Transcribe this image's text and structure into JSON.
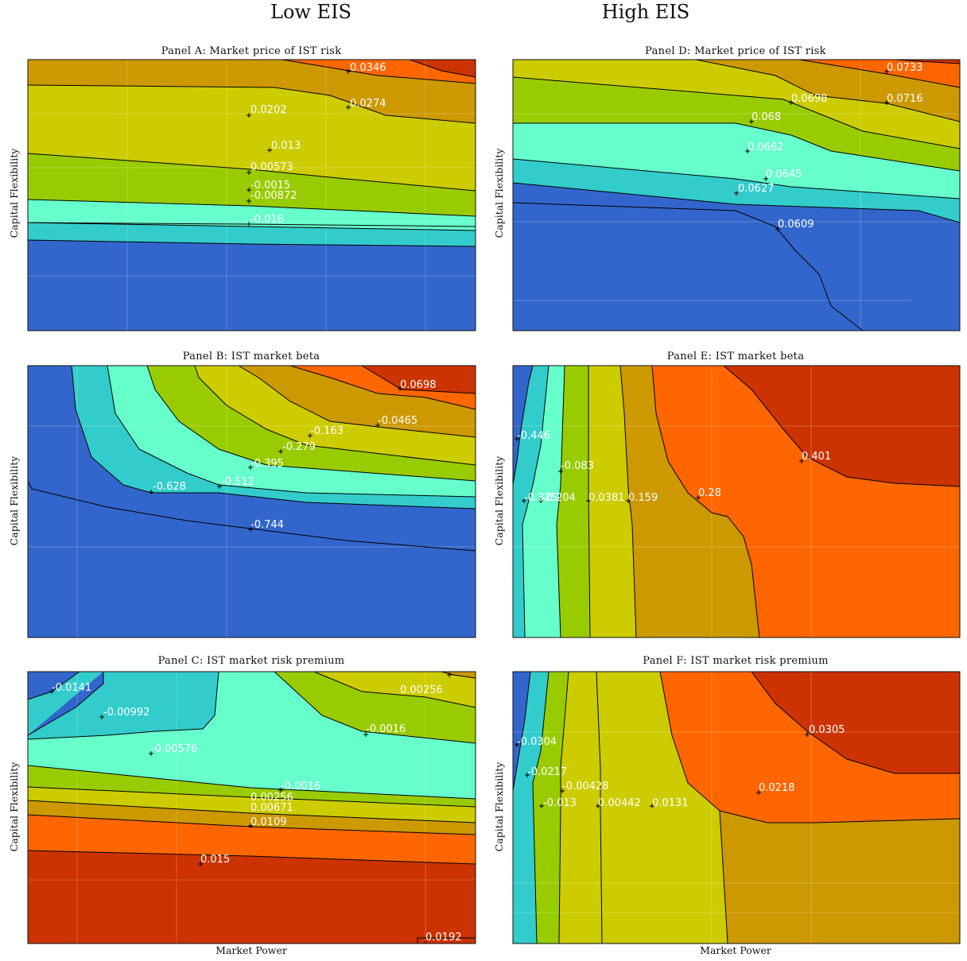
{
  "column_titles": [
    "Low EIS",
    "High EIS"
  ],
  "colors": {
    "c0": "#3366cc",
    "c1": "#33cccc",
    "c2": "#66ffcc",
    "c3": "#99cc00",
    "c4": "#cccc00",
    "c5": "#cc9900",
    "c6": "#ff6600",
    "c7": "#cc3300"
  },
  "chart_data": [
    {
      "type": "contour",
      "panel": "A",
      "title": "Panel A: Market price of IST risk",
      "xlabel": "",
      "ylabel": "Capital Flexibility",
      "contour_levels": [
        "0.0346",
        "0.0274",
        "0.0202",
        "0.013",
        "0.00573",
        "-0.0015",
        "-0.00872",
        "-0.016"
      ]
    },
    {
      "type": "contour",
      "panel": "B",
      "title": "Panel B: IST market beta",
      "xlabel": "",
      "ylabel": "Capital Flexibility",
      "contour_levels": [
        "0.0698",
        "-0.0465",
        "-0.163",
        "-0.279",
        "-0.395",
        "-0.512",
        "-0.628",
        "-0.744"
      ]
    },
    {
      "type": "contour",
      "panel": "C",
      "title": "Panel C: IST market risk premium",
      "xlabel": "Market Power",
      "ylabel": "Capital Flexibility",
      "contour_levels": [
        "-0.0141",
        "0.00256",
        "-0.00992",
        "-0.0016",
        "-0.00576",
        "-0.0016",
        "0.00256",
        "0.00671",
        "0.0109",
        "0.015",
        "0.0192"
      ]
    },
    {
      "type": "contour",
      "panel": "D",
      "title": "Panel D: Market price of IST risk",
      "xlabel": "",
      "ylabel": "Capital Flexibility",
      "contour_levels": [
        "0.0733",
        "0.0698",
        "0.0716",
        "0.068",
        "0.0662",
        "0.0645",
        "0.0627",
        "0.0609"
      ]
    },
    {
      "type": "contour",
      "panel": "E",
      "title": "Panel E: IST market beta",
      "xlabel": "",
      "ylabel": "Capital Flexibility",
      "contour_levels": [
        "-0.446",
        "-0.083",
        "0.401",
        "-0.325",
        "-0.204",
        "0.0381",
        "0.159",
        "0.28"
      ]
    },
    {
      "type": "contour",
      "panel": "F",
      "title": "Panel F: IST market risk premium",
      "xlabel": "Market Power",
      "ylabel": "Capital Flexibility",
      "contour_levels": [
        "0.0305",
        "-0.0304",
        "-0.0217",
        "0.0218",
        "-0.00428",
        "-0.013",
        "0.00442",
        "0.0131"
      ]
    }
  ]
}
